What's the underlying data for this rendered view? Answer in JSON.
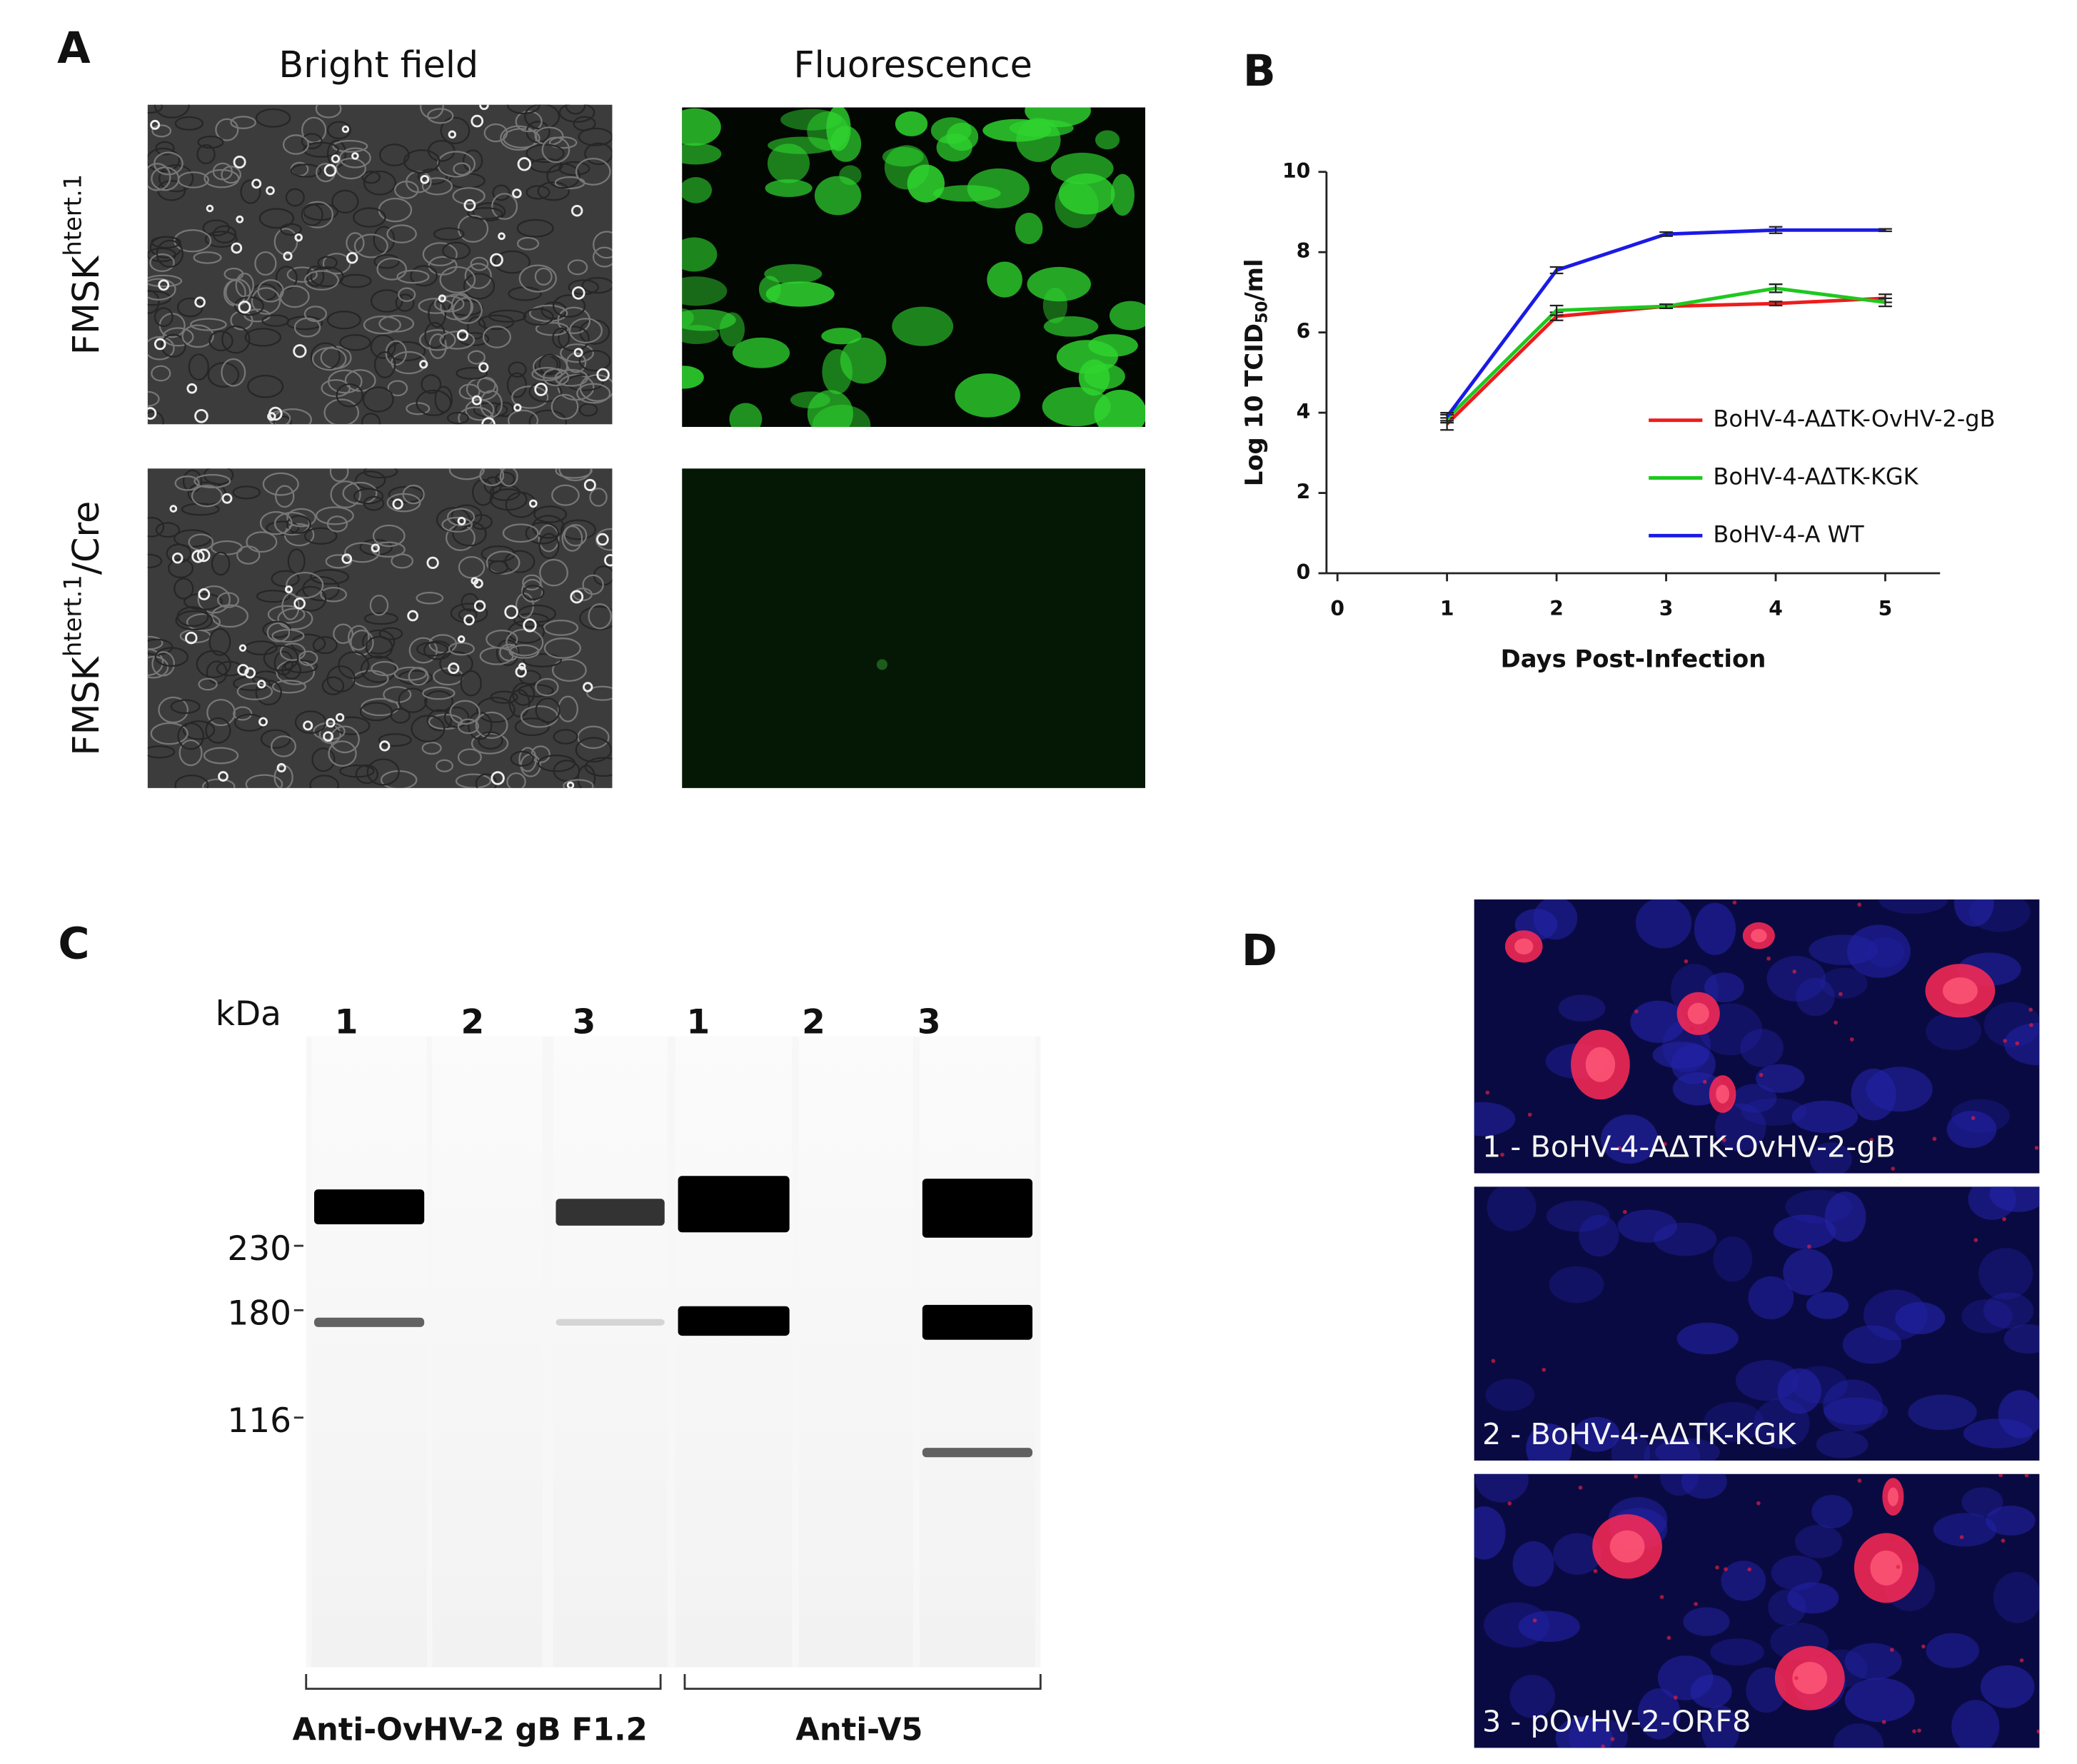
{
  "panel_labels": [
    "A",
    "B",
    "C",
    "D"
  ],
  "panel_a": {
    "columns": [
      "Bright field",
      "Fluorescence"
    ],
    "rows": [
      {
        "text": "FMSK",
        "sup": "htert.1"
      },
      {
        "text": "FMSK",
        "sup": "htert.1",
        "suffix": "/Cre"
      }
    ]
  },
  "chart_data": {
    "type": "line",
    "x_label": "Days Post-Infection",
    "y_label": {
      "text": "Log 10 TCID",
      "sub": "50",
      "suffix": "/ml"
    },
    "x": [
      1,
      2,
      3,
      4,
      5
    ],
    "series": [
      {
        "name": "BoHV-4-AΔTK-OvHV-2-gB",
        "color": "#ee1c1c",
        "values": [
          3.72,
          6.4,
          6.65,
          6.72,
          6.85
        ],
        "errors": [
          0.15,
          0.1,
          0.05,
          0.05,
          0.1
        ]
      },
      {
        "name": "BoHV-4-AΔTK-KGK",
        "color": "#1ec81e",
        "values": [
          3.85,
          6.55,
          6.65,
          7.1,
          6.75
        ],
        "errors": [
          0.1,
          0.12,
          0.05,
          0.1,
          0.1
        ]
      },
      {
        "name": "BoHV-4-A WT",
        "color": "#1a1ae6",
        "values": [
          3.9,
          7.55,
          8.45,
          8.55,
          8.55
        ],
        "errors": [
          0.1,
          0.08,
          0.05,
          0.08,
          0.03
        ]
      }
    ],
    "xlim": [
      -0.1,
      5.5
    ],
    "ylim": [
      0,
      10
    ],
    "xticks": [
      0,
      1,
      2,
      3,
      4,
      5
    ],
    "yticks": [
      0,
      2,
      4,
      6,
      8,
      10
    ],
    "legend": "right",
    "error_bars": true
  },
  "panel_c": {
    "unit": "kDa",
    "markers": [
      230,
      180,
      116
    ],
    "lanes": [
      "1",
      "2",
      "3",
      "1",
      "2",
      "3"
    ],
    "groups": [
      "Anti-OvHV-2 gB F1.2",
      "Anti-V5"
    ]
  },
  "panel_d": {
    "captions": [
      "1 - BoHV-4-AΔTK-OvHV-2-gB",
      "2 - BoHV-4-AΔTK-KGK",
      "3 - pOvHV-2-ORF8"
    ]
  }
}
